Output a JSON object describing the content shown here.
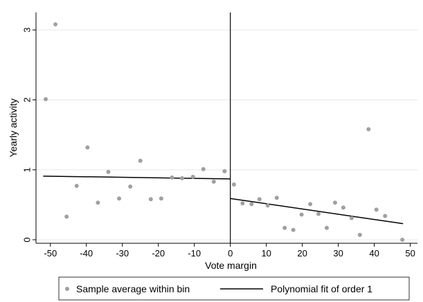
{
  "chart_data": {
    "type": "scatter",
    "xlabel": "Vote margin",
    "ylabel": "Yearly activity",
    "xlim": [
      -54,
      52
    ],
    "ylim": [
      -0.05,
      3.25
    ],
    "x_ticks": [
      -50,
      -40,
      -30,
      -20,
      -10,
      0,
      10,
      20,
      30,
      40,
      50
    ],
    "y_ticks": [
      0,
      1,
      2,
      3
    ],
    "grid": "horizontal",
    "cutoff": 0,
    "colors": {
      "points": "#a0a0a0",
      "fit": "#000000",
      "grid": "#e8e8e8"
    },
    "points": [
      {
        "x": -51.3,
        "y": 2.01
      },
      {
        "x": -48.6,
        "y": 3.08
      },
      {
        "x": -45.5,
        "y": 0.33
      },
      {
        "x": -42.7,
        "y": 0.77
      },
      {
        "x": -39.7,
        "y": 1.32
      },
      {
        "x": -36.8,
        "y": 0.53
      },
      {
        "x": -33.9,
        "y": 0.97
      },
      {
        "x": -30.9,
        "y": 0.59
      },
      {
        "x": -27.8,
        "y": 0.76
      },
      {
        "x": -25.0,
        "y": 1.13
      },
      {
        "x": -22.1,
        "y": 0.58
      },
      {
        "x": -19.2,
        "y": 0.59
      },
      {
        "x": -16.2,
        "y": 0.89
      },
      {
        "x": -13.4,
        "y": 0.88
      },
      {
        "x": -10.4,
        "y": 0.9
      },
      {
        "x": -7.5,
        "y": 1.01
      },
      {
        "x": -4.6,
        "y": 0.83
      },
      {
        "x": -1.6,
        "y": 0.98
      },
      {
        "x": 1.0,
        "y": 0.79
      },
      {
        "x": 3.4,
        "y": 0.52
      },
      {
        "x": 5.9,
        "y": 0.51
      },
      {
        "x": 8.1,
        "y": 0.58
      },
      {
        "x": 10.4,
        "y": 0.49
      },
      {
        "x": 12.9,
        "y": 0.6
      },
      {
        "x": 15.1,
        "y": 0.17
      },
      {
        "x": 17.5,
        "y": 0.14
      },
      {
        "x": 19.8,
        "y": 0.36
      },
      {
        "x": 22.2,
        "y": 0.51
      },
      {
        "x": 24.5,
        "y": 0.37
      },
      {
        "x": 26.8,
        "y": 0.17
      },
      {
        "x": 29.1,
        "y": 0.53
      },
      {
        "x": 31.4,
        "y": 0.46
      },
      {
        "x": 33.7,
        "y": 0.31
      },
      {
        "x": 36.0,
        "y": 0.07
      },
      {
        "x": 38.4,
        "y": 1.58
      },
      {
        "x": 40.6,
        "y": 0.43
      },
      {
        "x": 43.0,
        "y": 0.34
      },
      {
        "x": 47.8,
        "y": 0.0
      }
    ],
    "fit_lines": [
      {
        "side": "left",
        "x": [
          -52.0,
          0.0
        ],
        "y": [
          0.91,
          0.87
        ]
      },
      {
        "side": "right",
        "x": [
          0.0,
          48.0
        ],
        "y": [
          0.59,
          0.23
        ]
      }
    ],
    "legend": {
      "position": "bottom",
      "entries": [
        {
          "label": "Sample average within bin",
          "marker": "dot"
        },
        {
          "label": "Polynomial fit of order 1",
          "marker": "line"
        }
      ]
    }
  }
}
